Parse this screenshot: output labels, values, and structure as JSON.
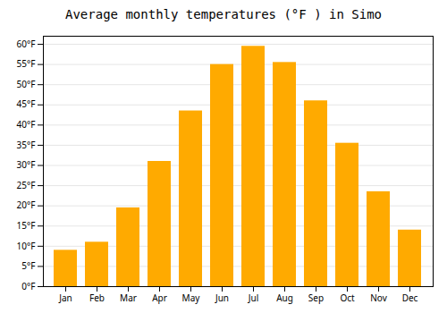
{
  "chart_data": {
    "type": "bar",
    "title": "Average monthly temperatures (°F ) in Simo",
    "categories": [
      "Jan",
      "Feb",
      "Mar",
      "Apr",
      "May",
      "Jun",
      "Jul",
      "Aug",
      "Sep",
      "Oct",
      "Nov",
      "Dec"
    ],
    "values": [
      9,
      11,
      19.5,
      31,
      43.5,
      55,
      59.5,
      55.5,
      46,
      35.5,
      23.5,
      14
    ],
    "color": "#FFAA00",
    "ylim": [
      0,
      62
    ],
    "yticks": [
      {
        "value": 0,
        "label": "0°F"
      },
      {
        "value": 5,
        "label": "5°F"
      },
      {
        "value": 10,
        "label": "10°F"
      },
      {
        "value": 15,
        "label": "15°F"
      },
      {
        "value": 20,
        "label": "20°F"
      },
      {
        "value": 25,
        "label": "25°F"
      },
      {
        "value": 30,
        "label": "30°F"
      },
      {
        "value": 35,
        "label": "35°F"
      },
      {
        "value": 40,
        "label": "40°F"
      },
      {
        "value": 45,
        "label": "45°F"
      },
      {
        "value": 50,
        "label": "50°F"
      },
      {
        "value": 55,
        "label": "55°F"
      },
      {
        "value": 60,
        "label": "60°F"
      }
    ],
    "grid": true
  }
}
